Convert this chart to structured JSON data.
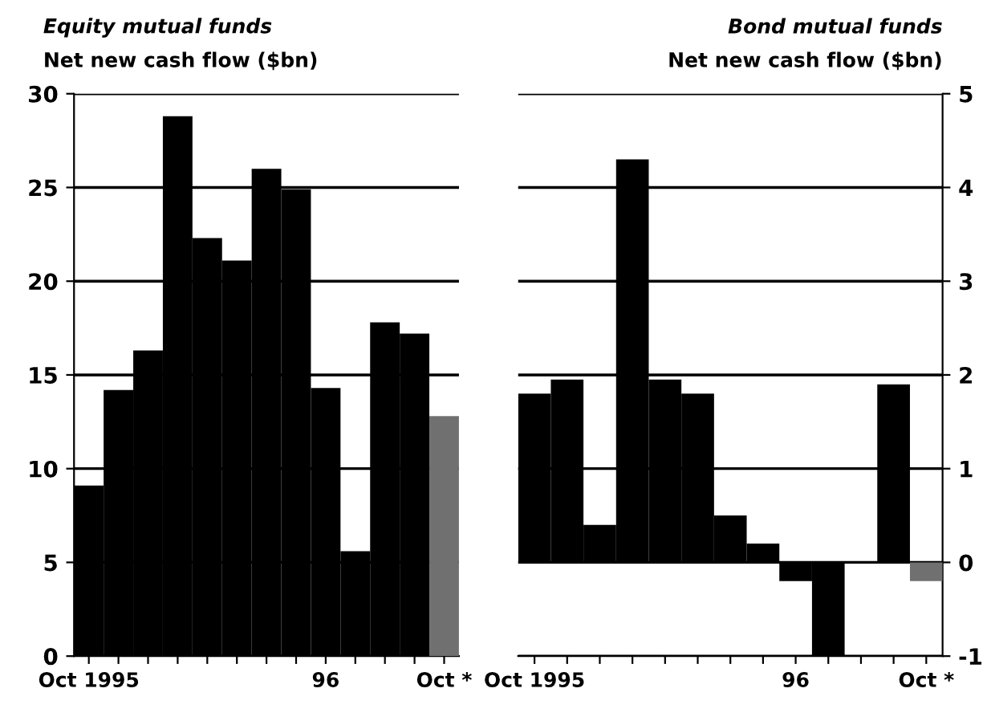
{
  "chart_data": [
    {
      "type": "bar",
      "title": "Equity mutual funds",
      "subtitle": "Net new cash flow ($bn)",
      "categories": [
        "Oct 1995",
        null,
        null,
        null,
        null,
        null,
        null,
        null,
        "96",
        null,
        null,
        null,
        "Oct *"
      ],
      "values": [
        9.1,
        14.2,
        16.3,
        28.8,
        22.3,
        21.1,
        26.0,
        24.9,
        14.3,
        5.6,
        17.8,
        17.2,
        12.8
      ],
      "colors": [
        "#000000",
        "#000000",
        "#000000",
        "#000000",
        "#000000",
        "#000000",
        "#000000",
        "#000000",
        "#000000",
        "#000000",
        "#000000",
        "#000000",
        "#707070"
      ],
      "ylim": [
        0,
        30
      ],
      "yticks": [
        0,
        5,
        10,
        15,
        20,
        25,
        30
      ],
      "grid": "y"
    },
    {
      "type": "bar",
      "title": "Bond mutual funds",
      "subtitle": "Net new cash flow ($bn)",
      "categories": [
        "Oct 1995",
        null,
        null,
        null,
        null,
        null,
        null,
        null,
        "96",
        null,
        null,
        null,
        "Oct *"
      ],
      "values": [
        1.8,
        1.95,
        0.4,
        4.3,
        1.95,
        1.8,
        0.5,
        0.2,
        -0.2,
        -1.0,
        null,
        1.9,
        -0.2
      ],
      "colors": [
        "#000000",
        "#000000",
        "#000000",
        "#000000",
        "#000000",
        "#000000",
        "#000000",
        "#000000",
        "#000000",
        "#000000",
        "#000000",
        "#000000",
        "#707070"
      ],
      "ylim": [
        -1,
        5
      ],
      "yticks": [
        {
          "value": -1,
          "label": "-1"
        },
        0,
        1,
        2,
        3,
        4,
        5
      ],
      "grid": "y"
    }
  ]
}
